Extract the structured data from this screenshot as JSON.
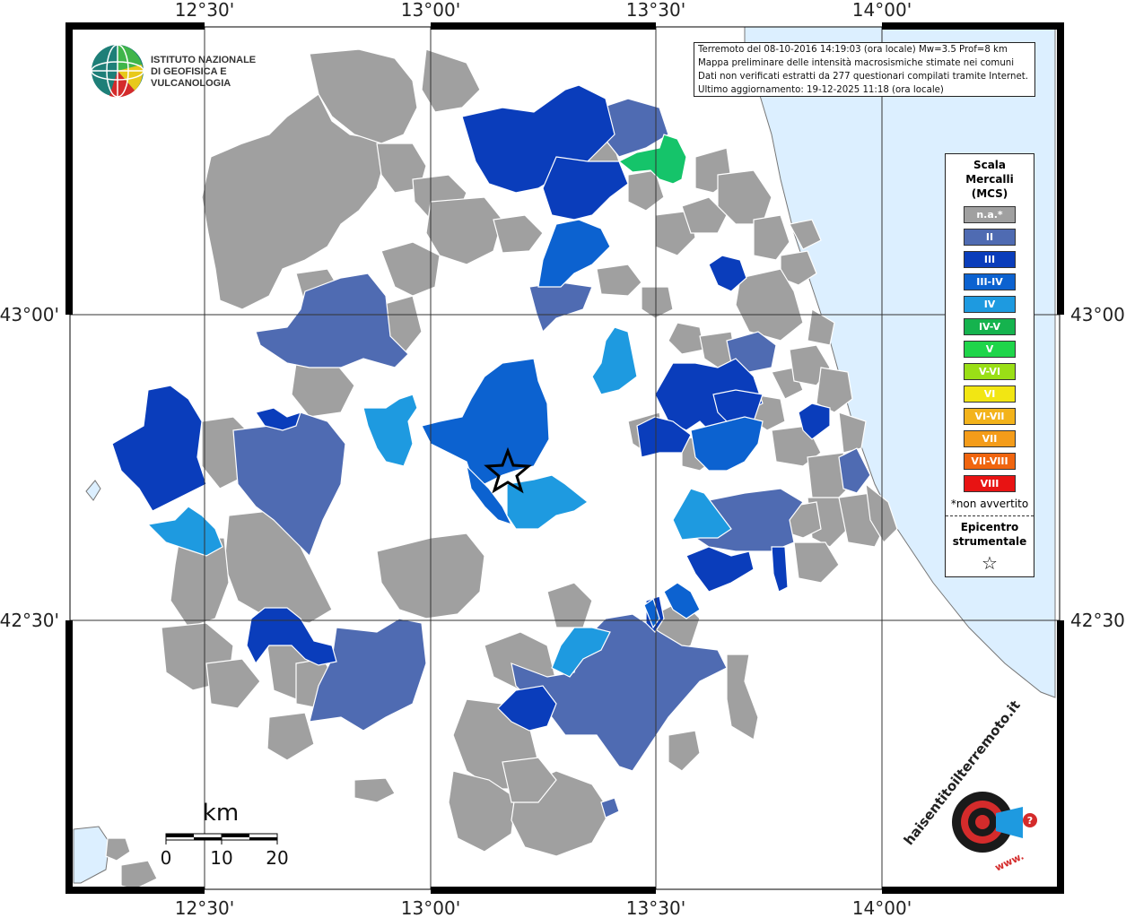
{
  "info": {
    "line1": "Terremoto del 08-10-2016 14:19:03 (ora locale) Mw=3.5 Prof=8 km",
    "line2": "Mappa preliminare delle intensità macrosismiche stimate nei comuni",
    "line3": "Dati non verificati estratti da 277 questionari compilati tramite Internet.",
    "line4": "Ultimo aggiornamento: 19-12-2025 11:18 (ora locale)"
  },
  "axes": {
    "lon_labels": [
      "12°30'",
      "13°00'",
      "13°30'",
      "14°00'"
    ],
    "lat_labels": [
      "43°00'",
      "42°30'"
    ]
  },
  "legend": {
    "title_line1": "Scala",
    "title_line2": "Mercalli",
    "title_line3": "(MCS)",
    "items": [
      {
        "label": "n.a.*",
        "color": "#a0a0a0"
      },
      {
        "label": "II",
        "color": "#4f6bb2"
      },
      {
        "label": "III",
        "color": "#0a3dbb"
      },
      {
        "label": "III-IV",
        "color": "#0c62d0"
      },
      {
        "label": "IV",
        "color": "#1e9ae0"
      },
      {
        "label": "IV-V",
        "color": "#15b34e"
      },
      {
        "label": "V",
        "color": "#1fd54a"
      },
      {
        "label": "V-VI",
        "color": "#9adf16"
      },
      {
        "label": "VI",
        "color": "#f2e613"
      },
      {
        "label": "VI-VII",
        "color": "#f3b31b"
      },
      {
        "label": "VII",
        "color": "#f49c1a"
      },
      {
        "label": "VII-VIII",
        "color": "#f0650f"
      },
      {
        "label": "VIII",
        "color": "#e81313"
      }
    ],
    "note": "*non avvertito",
    "epicentre_line1": "Epicentro",
    "epicentre_line2": "strumentale",
    "epicentre_symbol": "☆"
  },
  "logo_ingv": {
    "line1": "ISTITUTO NAZIONALE",
    "line2": "DI GEOFISICA E VULCANOLOGIA"
  },
  "scalebar": {
    "unit": "km",
    "ticks": [
      "0",
      "10",
      "20"
    ]
  },
  "logo_hsit": {
    "text": "haisentitoilterremoto.it",
    "url": "www."
  },
  "colors": {
    "na": "#a0a0a0",
    "ii": "#4f6bb2",
    "iii": "#0a3dbb",
    "iii_iv": "#0c62d0",
    "iv": "#1e9ae0",
    "iv_v": "#15b34e",
    "v": "#1fd54a",
    "sea": "#dcefff"
  }
}
